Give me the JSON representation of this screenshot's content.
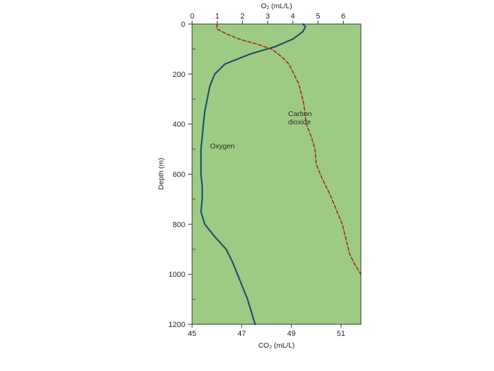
{
  "chart_data": {
    "type": "line",
    "title": "",
    "top_axis": {
      "label": "O₂ (mL/L)",
      "range": [
        0,
        6.7
      ],
      "ticks": [
        0,
        1,
        2,
        3,
        4,
        5,
        6
      ]
    },
    "bottom_axis": {
      "label": "CO₂ (mL/L)",
      "range": [
        45,
        51.8
      ],
      "ticks": [
        45,
        47,
        49,
        51
      ]
    },
    "y_axis": {
      "label": "Depth (m)",
      "range": [
        0,
        1200
      ],
      "inverted": true,
      "ticks": [
        0,
        200,
        400,
        600,
        800,
        1000,
        1200
      ]
    },
    "grid": false,
    "background_color": "#9ecb83",
    "series": [
      {
        "name": "Oxygen",
        "axis": "O2",
        "color": "#1f4f6e",
        "style": "solid",
        "points": [
          [
            4.4,
            0
          ],
          [
            4.5,
            10
          ],
          [
            4.4,
            30
          ],
          [
            4.0,
            60
          ],
          [
            3.3,
            90
          ],
          [
            2.3,
            120
          ],
          [
            1.3,
            160
          ],
          [
            0.9,
            200
          ],
          [
            0.7,
            250
          ],
          [
            0.6,
            300
          ],
          [
            0.5,
            350
          ],
          [
            0.45,
            400
          ],
          [
            0.4,
            450
          ],
          [
            0.35,
            500
          ],
          [
            0.35,
            550
          ],
          [
            0.35,
            600
          ],
          [
            0.4,
            650
          ],
          [
            0.4,
            700
          ],
          [
            0.35,
            750
          ],
          [
            0.5,
            800
          ],
          [
            0.9,
            850
          ],
          [
            1.35,
            900
          ],
          [
            1.6,
            950
          ],
          [
            1.8,
            1000
          ],
          [
            2.0,
            1050
          ],
          [
            2.2,
            1100
          ],
          [
            2.35,
            1150
          ],
          [
            2.5,
            1200
          ]
        ]
      },
      {
        "name": "Carbon dioxide",
        "axis": "CO2",
        "color": "#9e2a2a",
        "style": "dashed",
        "points": [
          [
            46.0,
            0
          ],
          [
            46.0,
            20
          ],
          [
            46.4,
            40
          ],
          [
            46.9,
            60
          ],
          [
            47.6,
            80
          ],
          [
            48.2,
            100
          ],
          [
            48.6,
            130
          ],
          [
            48.9,
            160
          ],
          [
            49.1,
            200
          ],
          [
            49.3,
            240
          ],
          [
            49.4,
            280
          ],
          [
            49.5,
            320
          ],
          [
            49.55,
            360
          ],
          [
            49.6,
            400
          ],
          [
            49.8,
            450
          ],
          [
            49.95,
            500
          ],
          [
            50.0,
            560
          ],
          [
            50.25,
            620
          ],
          [
            50.55,
            680
          ],
          [
            50.8,
            740
          ],
          [
            51.05,
            800
          ],
          [
            51.2,
            860
          ],
          [
            51.35,
            920
          ],
          [
            51.55,
            960
          ],
          [
            51.8,
            1000
          ]
        ]
      }
    ],
    "annotations": {
      "oxygen": "Oxygen",
      "carbon_line1": "Carbon",
      "carbon_line2": "dioxide"
    }
  }
}
